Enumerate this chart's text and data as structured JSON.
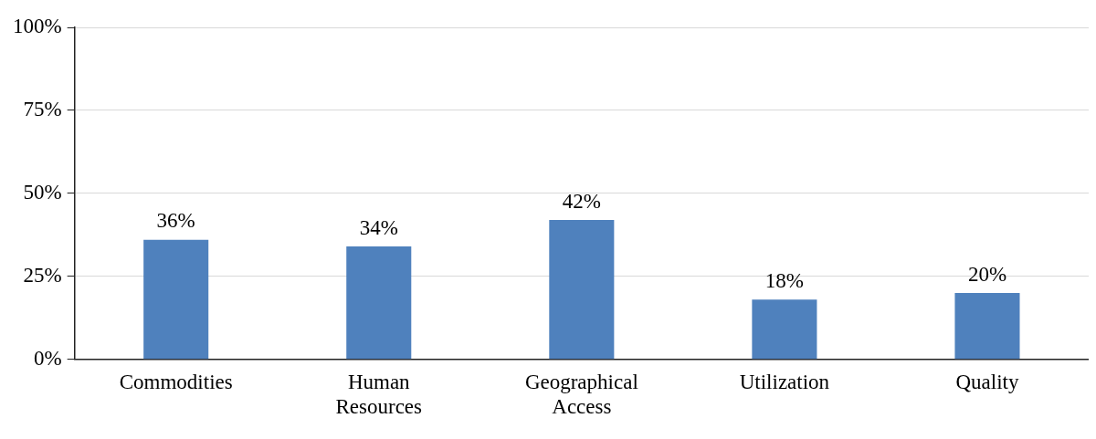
{
  "chart_data": {
    "type": "bar",
    "categories": [
      "Commodities",
      "Human Resources",
      "Geographical Access",
      "Utilization",
      "Quality"
    ],
    "values": [
      36,
      34,
      42,
      18,
      20
    ],
    "value_labels": [
      "36%",
      "34%",
      "42%",
      "18%",
      "20%"
    ],
    "color": "#4f81bd",
    "ylim": [
      0,
      100
    ],
    "yticks": [
      {
        "value": 0,
        "label": "0%"
      },
      {
        "value": 25,
        "label": "25%"
      },
      {
        "value": 50,
        "label": "50%"
      },
      {
        "value": 75,
        "label": "75%"
      },
      {
        "value": 100,
        "label": "100%"
      }
    ],
    "grid": "y",
    "legend": false
  }
}
